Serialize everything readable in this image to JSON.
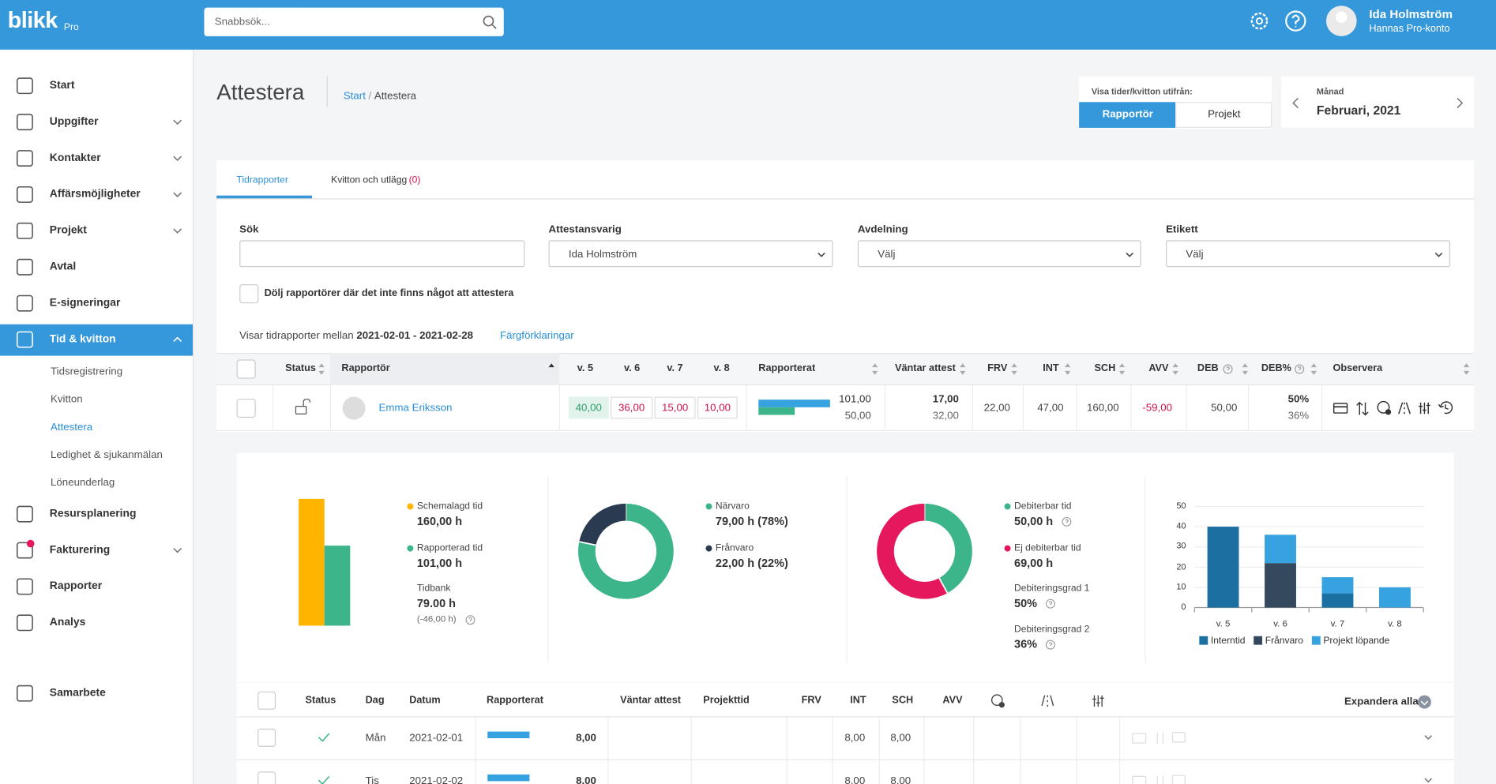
{
  "topbar": {
    "logo": "blikk",
    "logo_sub": "Pro",
    "search_placeholder": "Snabbsök...",
    "user_name": "Ida Holmström",
    "user_account": "Hannas Pro-konto"
  },
  "sidebar": {
    "items": [
      "Start",
      "Uppgifter",
      "Kontakter",
      "Affärsmöjligheter",
      "Projekt",
      "Avtal",
      "E-signeringar",
      "Tid & kvitton",
      "Resursplanering",
      "Fakturering",
      "Rapporter",
      "Analys",
      "Samarbete"
    ],
    "subitems": [
      "Tidsregistrering",
      "Kvitton",
      "Attestera",
      "Ledighet & sjukanmälan",
      "Löneunderlag"
    ]
  },
  "page": {
    "title": "Attestera",
    "breadcrumb": [
      "Start",
      "/",
      "Attestera"
    ]
  },
  "view_toggle": {
    "label": "Visa tider/kvitton utifrån:",
    "options": [
      "Rapportör",
      "Projekt"
    ]
  },
  "period": {
    "label": "Månad",
    "value": "Februari, 2021"
  },
  "tabs": [
    {
      "label": "Tidrapporter"
    },
    {
      "label": "Kvitton och utlägg",
      "count": "(0)"
    }
  ],
  "filters": [
    {
      "label": "Sök"
    },
    {
      "label": "Attestansvarig",
      "value": "Ida Holmström"
    },
    {
      "label": "Avdelning",
      "value": "Välj"
    },
    {
      "label": "Etikett",
      "value": "Välj"
    }
  ],
  "hide_checkbox": "Dölj rapportörer där det inte finns något att attestera",
  "range": {
    "prefix": "Visar tidrapporter mellan",
    "dates": "2021-02-01 - 2021-02-28",
    "link": "Färgförklaringar"
  },
  "table": {
    "columns": [
      "Status",
      "Rapportör",
      "v. 5",
      "v. 6",
      "v. 7",
      "v. 8",
      "Rapporterat",
      "Väntar attest",
      "FRV",
      "INT",
      "SCH",
      "AVV",
      "DEB",
      "DEB%",
      "Observera"
    ],
    "rows": [
      {
        "name": "Emma Eriksson",
        "weeks": [
          "40,00",
          "36,00",
          "15,00",
          "10,00"
        ],
        "reported": [
          "101,00",
          "50,00"
        ],
        "pending": [
          "17,00",
          "32,00"
        ],
        "frv": "22,00",
        "int": "47,00",
        "sch": "160,00",
        "avv": "-59,00",
        "deb": "50,00",
        "deb_pct": [
          "50%",
          "36%"
        ]
      }
    ]
  },
  "summary": {
    "hours": {
      "type": "bar",
      "series": [
        {
          "name": "Schemalagd tid",
          "value": 160,
          "value_label": "160,00 h",
          "color": "#ffb400"
        },
        {
          "name": "Rapporterad tid",
          "value": 101,
          "value_label": "101,00 h",
          "color": "#3db58a"
        }
      ],
      "bank_label": "Tidbank",
      "bank_value": "79.00 h",
      "bank_diff": "(-46,00 h)"
    },
    "presence": {
      "type": "donut",
      "series": [
        {
          "name": "Närvaro",
          "value": 79,
          "value_label": "79,00 h (78%)",
          "color": "#3db58a"
        },
        {
          "name": "Frånvaro",
          "value": 22,
          "value_label": "22,00 h (22%)",
          "color": "#2a3a50"
        }
      ]
    },
    "billing": {
      "type": "donut",
      "series": [
        {
          "name": "Debiterbar tid",
          "value": 50,
          "value_label": "50,00 h",
          "color": "#3db58a"
        },
        {
          "name": "Ej debiterbar tid",
          "value": 69,
          "value_label": "69,00 h",
          "color": "#e5185d"
        }
      ],
      "rates": [
        {
          "label": "Debiteringsgrad 1",
          "value": "50%"
        },
        {
          "label": "Debiteringsgrad 2",
          "value": "36%"
        }
      ]
    },
    "weeks": {
      "type": "bar",
      "stacked": true,
      "categories": [
        "v. 5",
        "v. 6",
        "v. 7",
        "v. 8"
      ],
      "series": [
        {
          "name": "Interntid",
          "color": "#1b6fa1",
          "values": [
            40,
            0,
            7,
            0
          ]
        },
        {
          "name": "Frånvaro",
          "color": "#34495e",
          "values": [
            0,
            22,
            0,
            0
          ]
        },
        {
          "name": "Projekt löpande",
          "color": "#36a2e0",
          "values": [
            0,
            14,
            8,
            10
          ]
        }
      ],
      "ylim": [
        0,
        50
      ],
      "yticks": [
        0,
        10,
        20,
        30,
        40,
        50
      ],
      "grid": true
    }
  },
  "days": {
    "columns": [
      "Status",
      "Dag",
      "Datum",
      "Rapporterat",
      "Väntar attest",
      "Projekttid",
      "FRV",
      "INT",
      "SCH",
      "AVV"
    ],
    "expand": "Expandera alla",
    "rows": [
      {
        "day": "Mån",
        "date": "2021-02-01",
        "reported": "8,00",
        "int": "8,00",
        "sch": "8,00"
      },
      {
        "day": "Tis",
        "date": "2021-02-02",
        "reported": "8,00",
        "int": "8,00",
        "sch": "8,00"
      }
    ]
  }
}
